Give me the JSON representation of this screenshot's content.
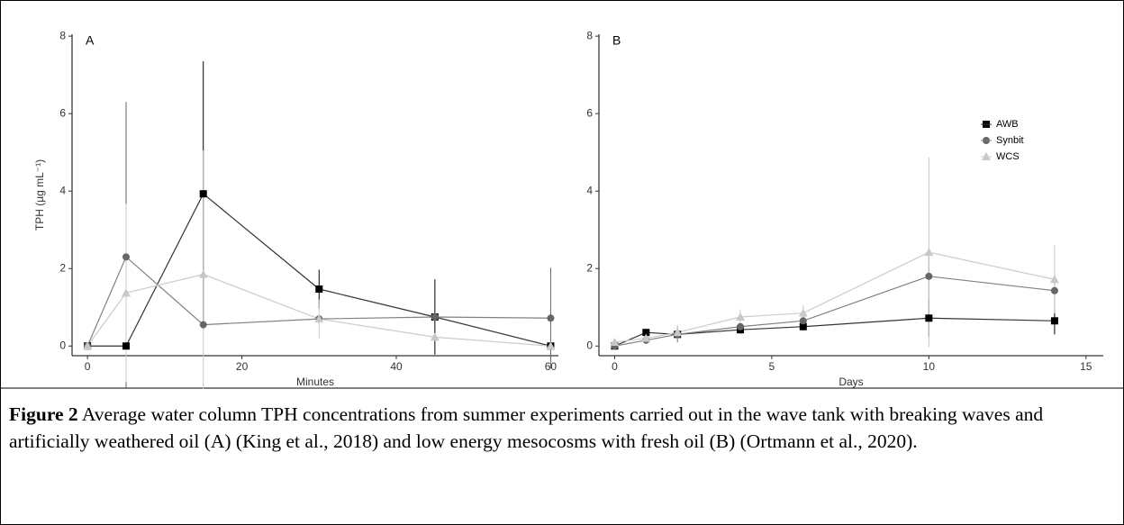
{
  "chart_data": [
    {
      "type": "line",
      "title": "A",
      "x_label": "Minutes",
      "y_label": "TPH (µg mL⁻¹)",
      "x": [
        0,
        5,
        15,
        30,
        45,
        60
      ],
      "xlim": [
        -2,
        61
      ],
      "xticks": [
        0,
        20,
        40,
        60
      ],
      "ylim": [
        -0.25,
        8.05
      ],
      "yticks": [
        0,
        2,
        4,
        6,
        8
      ],
      "legend": false,
      "series": [
        {
          "name": "AWB",
          "color": "#000000",
          "line_color": "#333333",
          "marker": "square",
          "values": [
            0,
            0,
            3.93,
            1.47,
            0.75,
            0
          ],
          "errors": [
            null,
            null,
            3.42,
            0.5,
            0.97,
            null
          ]
        },
        {
          "name": "Synbit",
          "color": "#666666",
          "line_color": "#808080",
          "marker": "circle",
          "values": [
            0,
            2.3,
            0.55,
            0.7,
            0.75,
            0.72
          ],
          "errors": [
            null,
            4.0,
            0.1,
            0.1,
            0.1,
            1.3
          ]
        },
        {
          "name": "WCS",
          "color": "#c8c8c8",
          "line_color": "#cccccc",
          "marker": "triangle",
          "values": [
            0,
            1.37,
            1.85,
            0.7,
            0.23,
            0
          ],
          "errors": [
            null,
            2.3,
            3.2,
            0.5,
            0.1,
            null
          ]
        }
      ]
    },
    {
      "type": "line",
      "title": "B",
      "x_label": "Days",
      "x": [
        0,
        1,
        2,
        4,
        6,
        10,
        14
      ],
      "xlim": [
        -0.5,
        15.55
      ],
      "xticks": [
        0,
        5,
        10,
        15
      ],
      "ylim": [
        -0.25,
        8.05
      ],
      "yticks": [
        0,
        2,
        4,
        6,
        8
      ],
      "legend": "upper right",
      "series": [
        {
          "name": "AWB",
          "color": "#000000",
          "line_color": "#333333",
          "marker": "square",
          "values": [
            0,
            0.35,
            0.3,
            0.42,
            0.5,
            0.72,
            0.65
          ],
          "errors": [
            0.05,
            0.05,
            0.15,
            0.1,
            0.1,
            0.48,
            0.35
          ]
        },
        {
          "name": "Synbit",
          "color": "#666666",
          "line_color": "#808080",
          "marker": "circle",
          "values": [
            0,
            0.15,
            0.3,
            0.5,
            0.65,
            1.8,
            1.43
          ],
          "errors": [
            0.05,
            0.05,
            0.2,
            0.15,
            0.15,
            0.6,
            0.4
          ]
        },
        {
          "name": "WCS",
          "color": "#c8c8c8",
          "line_color": "#cccccc",
          "marker": "triangle",
          "values": [
            0.1,
            0.2,
            0.35,
            0.75,
            0.85,
            2.42,
            1.72
          ],
          "errors": [
            0.1,
            0.05,
            0.2,
            0.2,
            0.2,
            2.45,
            0.88
          ]
        }
      ]
    }
  ],
  "caption_label": "Figure 2",
  "caption": "Average water column TPH concentrations from summer experiments carried out in the wave tank with breaking waves and artificially weathered oil (A) (King et al., 2018) and low energy mesocosms with fresh oil (B) (Ortmann et al., 2020)."
}
